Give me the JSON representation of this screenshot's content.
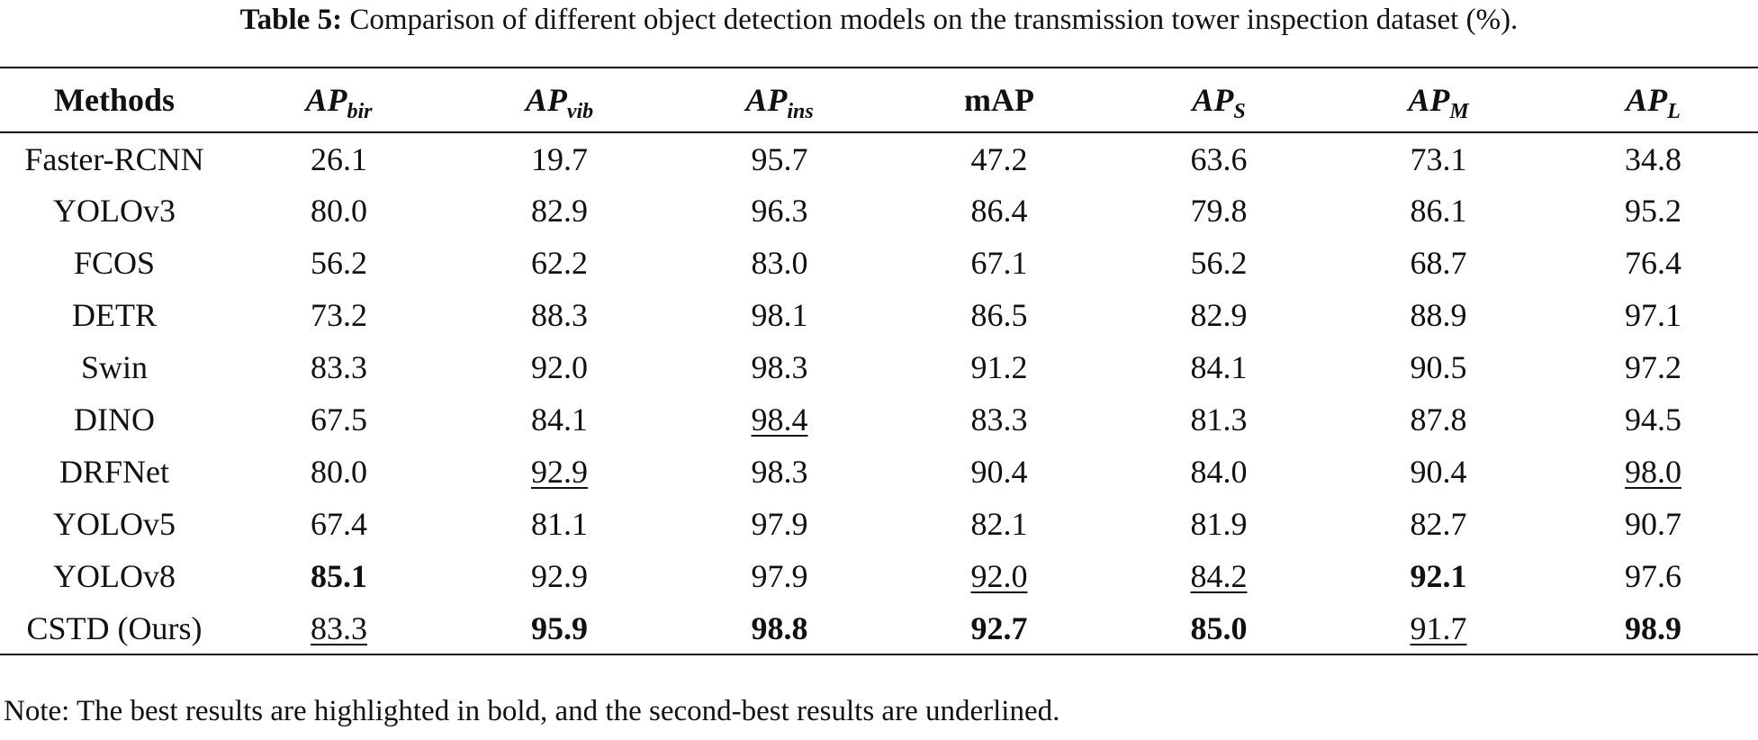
{
  "caption": {
    "label": "Table 5:",
    "text": "Comparison of different object detection models on the transmission tower inspection dataset (%)."
  },
  "table": {
    "headers": [
      {
        "main": "Methods",
        "sub": ""
      },
      {
        "main": "AP",
        "sub": "bir"
      },
      {
        "main": "AP",
        "sub": "vib"
      },
      {
        "main": "AP",
        "sub": "ins"
      },
      {
        "main": "mAP",
        "sub": ""
      },
      {
        "main": "AP",
        "sub": "S"
      },
      {
        "main": "AP",
        "sub": "M"
      },
      {
        "main": "AP",
        "sub": "L"
      }
    ],
    "rows": [
      {
        "method": "Faster-RCNN",
        "cells": [
          {
            "v": "26.1",
            "s": ""
          },
          {
            "v": "19.7",
            "s": ""
          },
          {
            "v": "95.7",
            "s": ""
          },
          {
            "v": "47.2",
            "s": ""
          },
          {
            "v": "63.6",
            "s": ""
          },
          {
            "v": "73.1",
            "s": ""
          },
          {
            "v": "34.8",
            "s": ""
          }
        ]
      },
      {
        "method": "YOLOv3",
        "cells": [
          {
            "v": "80.0",
            "s": ""
          },
          {
            "v": "82.9",
            "s": ""
          },
          {
            "v": "96.3",
            "s": ""
          },
          {
            "v": "86.4",
            "s": ""
          },
          {
            "v": "79.8",
            "s": ""
          },
          {
            "v": "86.1",
            "s": ""
          },
          {
            "v": "95.2",
            "s": ""
          }
        ]
      },
      {
        "method": "FCOS",
        "cells": [
          {
            "v": "56.2",
            "s": ""
          },
          {
            "v": "62.2",
            "s": ""
          },
          {
            "v": "83.0",
            "s": ""
          },
          {
            "v": "67.1",
            "s": ""
          },
          {
            "v": "56.2",
            "s": ""
          },
          {
            "v": "68.7",
            "s": ""
          },
          {
            "v": "76.4",
            "s": ""
          }
        ]
      },
      {
        "method": "DETR",
        "cells": [
          {
            "v": "73.2",
            "s": ""
          },
          {
            "v": "88.3",
            "s": ""
          },
          {
            "v": "98.1",
            "s": ""
          },
          {
            "v": "86.5",
            "s": ""
          },
          {
            "v": "82.9",
            "s": ""
          },
          {
            "v": "88.9",
            "s": ""
          },
          {
            "v": "97.1",
            "s": ""
          }
        ]
      },
      {
        "method": "Swin",
        "cells": [
          {
            "v": "83.3",
            "s": ""
          },
          {
            "v": "92.0",
            "s": ""
          },
          {
            "v": "98.3",
            "s": ""
          },
          {
            "v": "91.2",
            "s": ""
          },
          {
            "v": "84.1",
            "s": ""
          },
          {
            "v": "90.5",
            "s": ""
          },
          {
            "v": "97.2",
            "s": ""
          }
        ]
      },
      {
        "method": "DINO",
        "cells": [
          {
            "v": "67.5",
            "s": ""
          },
          {
            "v": "84.1",
            "s": ""
          },
          {
            "v": "98.4",
            "s": "u"
          },
          {
            "v": "83.3",
            "s": ""
          },
          {
            "v": "81.3",
            "s": ""
          },
          {
            "v": "87.8",
            "s": ""
          },
          {
            "v": "94.5",
            "s": ""
          }
        ]
      },
      {
        "method": "DRFNet",
        "cells": [
          {
            "v": "80.0",
            "s": ""
          },
          {
            "v": "92.9",
            "s": "u"
          },
          {
            "v": "98.3",
            "s": ""
          },
          {
            "v": "90.4",
            "s": ""
          },
          {
            "v": "84.0",
            "s": ""
          },
          {
            "v": "90.4",
            "s": ""
          },
          {
            "v": "98.0",
            "s": "u"
          }
        ]
      },
      {
        "method": "YOLOv5",
        "cells": [
          {
            "v": "67.4",
            "s": ""
          },
          {
            "v": "81.1",
            "s": ""
          },
          {
            "v": "97.9",
            "s": ""
          },
          {
            "v": "82.1",
            "s": ""
          },
          {
            "v": "81.9",
            "s": ""
          },
          {
            "v": "82.7",
            "s": ""
          },
          {
            "v": "90.7",
            "s": ""
          }
        ]
      },
      {
        "method": "YOLOv8",
        "cells": [
          {
            "v": "85.1",
            "s": "b"
          },
          {
            "v": "92.9",
            "s": ""
          },
          {
            "v": "97.9",
            "s": ""
          },
          {
            "v": "92.0",
            "s": "u"
          },
          {
            "v": "84.2",
            "s": "u"
          },
          {
            "v": "92.1",
            "s": "b"
          },
          {
            "v": "97.6",
            "s": ""
          }
        ]
      },
      {
        "method": "CSTD (Ours)",
        "cells": [
          {
            "v": "83.3",
            "s": "u"
          },
          {
            "v": "95.9",
            "s": "b"
          },
          {
            "v": "98.8",
            "s": "b"
          },
          {
            "v": "92.7",
            "s": "b"
          },
          {
            "v": "85.0",
            "s": "b"
          },
          {
            "v": "91.7",
            "s": "u"
          },
          {
            "v": "98.9",
            "s": "b"
          }
        ]
      }
    ]
  },
  "note": "Note: The best results are highlighted in bold, and the second-best results are underlined."
}
